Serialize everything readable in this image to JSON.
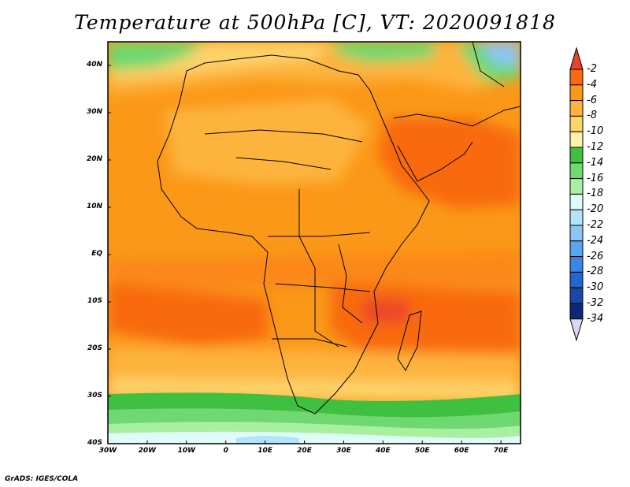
{
  "title": "Temperature at 500hPa [C], VT: 2020091818",
  "credit": "GrADS: IGES/COLA",
  "map": {
    "lat_labels": [
      {
        "label": "40N",
        "lat": 40
      },
      {
        "label": "30N",
        "lat": 30
      },
      {
        "label": "20N",
        "lat": 20
      },
      {
        "label": "10N",
        "lat": 10
      },
      {
        "label": "EQ",
        "lat": 0
      },
      {
        "label": "10S",
        "lat": -10
      },
      {
        "label": "20S",
        "lat": -20
      },
      {
        "label": "30S",
        "lat": -30
      },
      {
        "label": "40S",
        "lat": -40
      }
    ],
    "lon_labels": [
      {
        "label": "30W",
        "lon": -30
      },
      {
        "label": "20W",
        "lon": -20
      },
      {
        "label": "10W",
        "lon": -10
      },
      {
        "label": "0",
        "lon": 0
      },
      {
        "label": "10E",
        "lon": 10
      },
      {
        "label": "20E",
        "lon": 20
      },
      {
        "label": "30E",
        "lon": 30
      },
      {
        "label": "40E",
        "lon": 40
      },
      {
        "label": "50E",
        "lon": 50
      },
      {
        "label": "60E",
        "lon": 60
      },
      {
        "label": "70E",
        "lon": 70
      }
    ],
    "lon_range": [
      -30,
      75
    ],
    "lat_range": [
      -40,
      45
    ]
  },
  "colorbar": {
    "levels": [
      "-2",
      "-4",
      "-6",
      "-8",
      "-10",
      "-12",
      "-14",
      "-16",
      "-18",
      "-20",
      "-22",
      "-24",
      "-26",
      "-28",
      "-30",
      "-32",
      "-34"
    ],
    "colors": [
      "#e8422a",
      "#f86a10",
      "#fb9818",
      "#fdb43c",
      "#fdd36a",
      "#fff2a8",
      "#40c040",
      "#70d870",
      "#a8f0a0",
      "#e0fcfa",
      "#b4e4fb",
      "#8ac6f6",
      "#5aa6ee",
      "#3a86e4",
      "#2466cc",
      "#1a48a8",
      "#0e2878",
      "#d8d8f0"
    ]
  }
}
